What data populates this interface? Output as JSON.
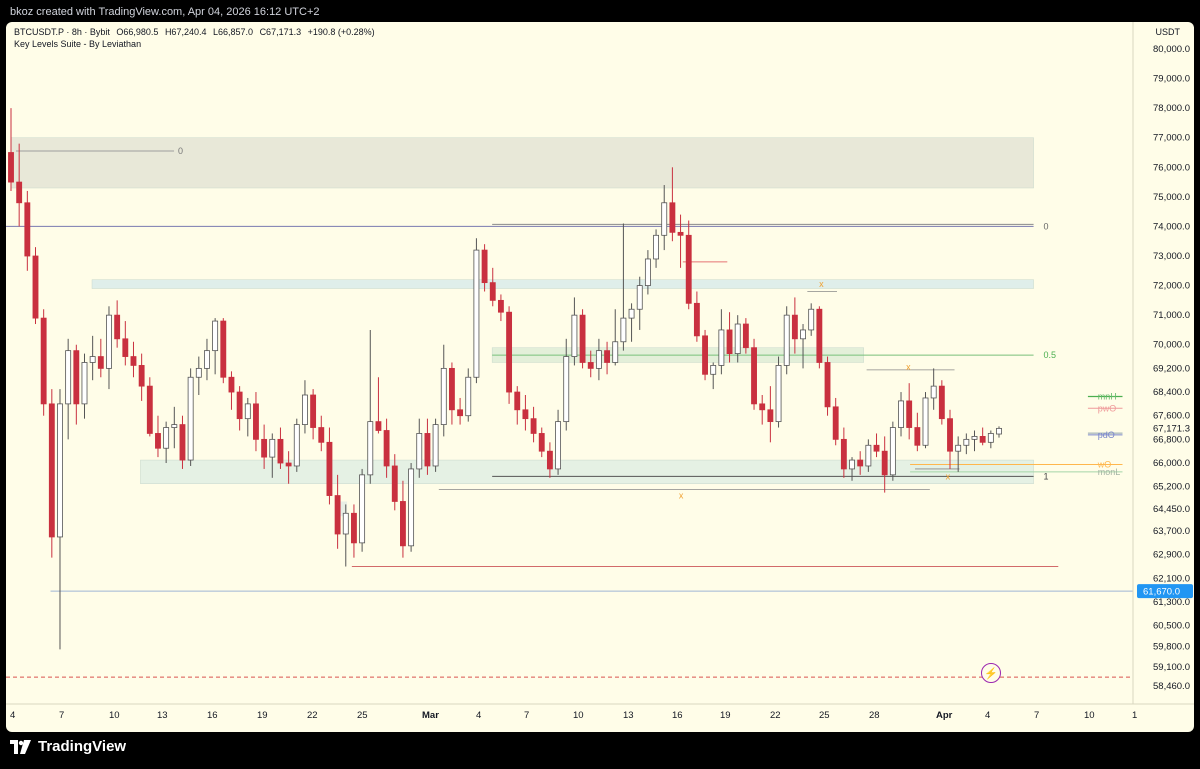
{
  "caption": "bkoz created with TradingView.com, Apr 04, 2026 16:12 UTC+2",
  "header": {
    "symbol": "BTCUSDT.P · 8h · Bybit",
    "open": "O66,980.5",
    "high": "H67,240.4",
    "low": "L66,857.0",
    "close": "C67,171.3",
    "change": "+190.8 (+0.28%)",
    "indicator": "Key Levels Suite - By Leviathan",
    "currency": "USDT"
  },
  "brand": {
    "name": "TradingView"
  },
  "colors": {
    "up": "#ffffff",
    "down": "#c9303f",
    "panel": "#fffde8",
    "text": "#131722",
    "price_tag": "#2196f3"
  },
  "chart_data": {
    "type": "candlestick",
    "title": "BTCUSDT.P · 8h · Bybit",
    "ylim": [
      57900,
      80600
    ],
    "y_ticks": [
      "80,000.0",
      "79,000.0",
      "78,000.0",
      "77,000.0",
      "76,000.0",
      "75,000.0",
      "74,000.0",
      "73,000.0",
      "72,000.0",
      "71,000.0",
      "70,000.0",
      "69,200.0",
      "68,400.0",
      "67,600.0",
      "66,800.0",
      "66,000.0",
      "65,200.0",
      "64,450.0",
      "63,700.0",
      "62,900.0",
      "62,100.0",
      "61,300.0",
      "60,500.0",
      "59,800.0",
      "59,100.0",
      "58,460.0"
    ],
    "x_ticks": [
      "4",
      "7",
      "10",
      "13",
      "16",
      "19",
      "22",
      "25",
      "Mar",
      "4",
      "7",
      "10",
      "13",
      "16",
      "19",
      "22",
      "25",
      "28",
      "Apr",
      "4",
      "7",
      "10",
      "1"
    ],
    "current_price": "67,171.3",
    "marked_price": "61,670.0",
    "marked_price_value": 61670,
    "level_labels": [
      "0",
      "0",
      "0.5",
      "1",
      "mnH",
      "pwO",
      "pdO",
      "wO",
      "monL",
      "x",
      "x",
      "x",
      "x"
    ],
    "zones": [
      {
        "from": "Feb 3",
        "to": "Apr 4",
        "low": 75300,
        "high": 77000
      },
      {
        "from": "Feb 9",
        "to": "Apr 4",
        "low": 71900,
        "high": 72200
      },
      {
        "from": "Mar 5",
        "to": "Mar 26",
        "low": 69400,
        "high": 69900
      },
      {
        "from": "Feb 12",
        "to": "Apr 4",
        "low": 65300,
        "high": 66100
      }
    ],
    "levels": [
      {
        "label": "0",
        "price": 76550
      },
      {
        "label": "0",
        "price": 74000
      },
      {
        "label": "0.5",
        "price": 69650
      },
      {
        "label": "1",
        "price": 65550
      },
      {
        "label": "mnH",
        "price": 68250
      },
      {
        "label": "pwO",
        "price": 67850
      },
      {
        "label": "pdO",
        "price": 66950
      },
      {
        "label": "wO",
        "price": 65950
      },
      {
        "label": "monL",
        "price": 65700
      }
    ],
    "candles_start_index": 0,
    "candles": [
      [
        76500,
        78000,
        75200,
        75500
      ],
      [
        75500,
        76800,
        74000,
        74800
      ],
      [
        74800,
        75200,
        72500,
        73000
      ],
      [
        73000,
        73300,
        70700,
        70900
      ],
      [
        70900,
        71200,
        67600,
        68000
      ],
      [
        68000,
        68500,
        62800,
        63500
      ],
      [
        63500,
        68500,
        59700,
        68000
      ],
      [
        68000,
        70200,
        66800,
        69800
      ],
      [
        69800,
        70000,
        67300,
        68000
      ],
      [
        68000,
        69700,
        67500,
        69400
      ],
      [
        69400,
        70300,
        68800,
        69600
      ],
      [
        69600,
        70200,
        68900,
        69200
      ],
      [
        69200,
        71300,
        68500,
        71000
      ],
      [
        71000,
        71500,
        69900,
        70200
      ],
      [
        70200,
        70800,
        69300,
        69600
      ],
      [
        69600,
        70100,
        68900,
        69300
      ],
      [
        69300,
        69700,
        68100,
        68600
      ],
      [
        68600,
        68900,
        66900,
        67000
      ],
      [
        67000,
        67600,
        66200,
        66500
      ],
      [
        66500,
        67400,
        66000,
        67200
      ],
      [
        67200,
        67900,
        66500,
        67300
      ],
      [
        67300,
        67600,
        65800,
        66100
      ],
      [
        66100,
        69200,
        65900,
        68900
      ],
      [
        68900,
        69600,
        68300,
        69200
      ],
      [
        69200,
        70200,
        68800,
        69800
      ],
      [
        69800,
        70900,
        69000,
        70800
      ],
      [
        70800,
        70900,
        68700,
        68900
      ],
      [
        68900,
        69100,
        67800,
        68400
      ],
      [
        68400,
        68600,
        67100,
        67500
      ],
      [
        67500,
        68200,
        66900,
        68000
      ],
      [
        68000,
        68400,
        66400,
        66800
      ],
      [
        66800,
        67300,
        65800,
        66200
      ],
      [
        66200,
        67000,
        65500,
        66800
      ],
      [
        66800,
        67200,
        65800,
        66000
      ],
      [
        66000,
        66400,
        65300,
        65900
      ],
      [
        65900,
        67500,
        65700,
        67300
      ],
      [
        67300,
        68800,
        67000,
        68300
      ],
      [
        68300,
        68500,
        66800,
        67200
      ],
      [
        67200,
        67600,
        66400,
        66700
      ],
      [
        66700,
        67200,
        64600,
        64900
      ],
      [
        64900,
        65600,
        63100,
        63600
      ],
      [
        63600,
        64600,
        62500,
        64300
      ],
      [
        64300,
        64600,
        62800,
        63300
      ],
      [
        63300,
        65800,
        63000,
        65600
      ],
      [
        65600,
        70500,
        65300,
        67400
      ],
      [
        67400,
        68900,
        67000,
        67100
      ],
      [
        67100,
        67500,
        65500,
        65900
      ],
      [
        65900,
        66300,
        64400,
        64700
      ],
      [
        64700,
        65400,
        62800,
        63200
      ],
      [
        63200,
        66000,
        63000,
        65800
      ],
      [
        65800,
        67500,
        65500,
        67000
      ],
      [
        67000,
        67500,
        65600,
        65900
      ],
      [
        65900,
        67500,
        65700,
        67300
      ],
      [
        67300,
        70000,
        66900,
        69200
      ],
      [
        69200,
        69400,
        67300,
        67800
      ],
      [
        67800,
        68200,
        67300,
        67600
      ],
      [
        67600,
        69200,
        67400,
        68900
      ],
      [
        68900,
        73600,
        68700,
        73200
      ],
      [
        73200,
        73400,
        71800,
        72100
      ],
      [
        72100,
        72600,
        71300,
        71500
      ],
      [
        71500,
        71700,
        70800,
        71100
      ],
      [
        71100,
        71300,
        68000,
        68400
      ],
      [
        68400,
        68600,
        67300,
        67800
      ],
      [
        67800,
        68300,
        67100,
        67500
      ],
      [
        67500,
        67900,
        66700,
        67000
      ],
      [
        67000,
        67200,
        66200,
        66400
      ],
      [
        66400,
        66700,
        65500,
        65800
      ],
      [
        65800,
        67800,
        65600,
        67400
      ],
      [
        67400,
        70200,
        67100,
        69600
      ],
      [
        69600,
        71600,
        69300,
        71000
      ],
      [
        71000,
        71200,
        69200,
        69400
      ],
      [
        69400,
        69800,
        68900,
        69200
      ],
      [
        69200,
        70200,
        68800,
        69800
      ],
      [
        69800,
        70100,
        69000,
        69400
      ],
      [
        69400,
        71200,
        69300,
        70100
      ],
      [
        70100,
        74100,
        69800,
        70900
      ],
      [
        70900,
        71400,
        70100,
        71200
      ],
      [
        71200,
        72300,
        70500,
        72000
      ],
      [
        72000,
        73200,
        71700,
        72900
      ],
      [
        72900,
        73900,
        72600,
        73700
      ],
      [
        73700,
        75400,
        73200,
        74800
      ],
      [
        74800,
        76000,
        73500,
        73800
      ],
      [
        73800,
        74400,
        72600,
        73700
      ],
      [
        73700,
        74200,
        71200,
        71400
      ],
      [
        71400,
        71800,
        70100,
        70300
      ],
      [
        70300,
        70500,
        68800,
        69000
      ],
      [
        69000,
        69400,
        68500,
        69300
      ],
      [
        69300,
        71200,
        69000,
        70500
      ],
      [
        70500,
        71100,
        69400,
        69700
      ],
      [
        69700,
        71000,
        69400,
        70700
      ],
      [
        70700,
        70900,
        69700,
        69900
      ],
      [
        69900,
        70200,
        67800,
        68000
      ],
      [
        68000,
        68300,
        67300,
        67800
      ],
      [
        67800,
        68600,
        66700,
        67400
      ],
      [
        67400,
        69600,
        67200,
        69300
      ],
      [
        69300,
        71300,
        69000,
        71000
      ],
      [
        71000,
        71600,
        69700,
        70200
      ],
      [
        70200,
        70700,
        69200,
        70500
      ],
      [
        70500,
        71400,
        70300,
        71200
      ],
      [
        71200,
        71300,
        69200,
        69400
      ],
      [
        69400,
        69600,
        67600,
        67900
      ],
      [
        67900,
        68200,
        66600,
        66800
      ],
      [
        66800,
        67200,
        65500,
        65800
      ],
      [
        65800,
        66200,
        65400,
        66100
      ],
      [
        66100,
        66400,
        65600,
        65900
      ],
      [
        65900,
        66800,
        65700,
        66600
      ],
      [
        66600,
        67000,
        66200,
        66400
      ],
      [
        66400,
        66900,
        65000,
        65600
      ],
      [
        65600,
        67400,
        65400,
        67200
      ],
      [
        67200,
        68400,
        66900,
        68100
      ],
      [
        68100,
        68700,
        66800,
        67200
      ],
      [
        67200,
        67700,
        66400,
        66600
      ],
      [
        66600,
        68400,
        66500,
        68200
      ],
      [
        68200,
        69200,
        67800,
        68600
      ],
      [
        68600,
        68800,
        67300,
        67500
      ],
      [
        67500,
        67800,
        65800,
        66400
      ],
      [
        66400,
        66900,
        65700,
        66600
      ],
      [
        66600,
        67000,
        66300,
        66800
      ],
      [
        66800,
        67100,
        66400,
        66900
      ],
      [
        66900,
        67200,
        66600,
        66700
      ],
      [
        66700,
        67100,
        66500,
        67000
      ],
      [
        66980.5,
        67240.4,
        66857,
        67171.3
      ]
    ]
  }
}
